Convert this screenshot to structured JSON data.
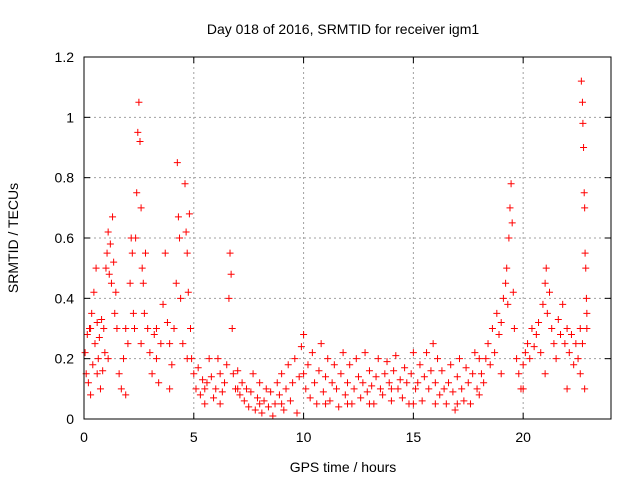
{
  "chart_data": {
    "type": "scatter",
    "title": "Day 018 of 2016, SRMTID for receiver igm1",
    "xlabel": "GPS time / hours",
    "ylabel": "SRMTID / TECUs",
    "xlim": [
      0,
      24
    ],
    "ylim": [
      0,
      1.2
    ],
    "xticks": [
      0,
      5,
      10,
      15,
      20
    ],
    "xtick_labels": [
      "0",
      "5",
      "10",
      "15",
      "20"
    ],
    "yticks": [
      0,
      0.2,
      0.4,
      0.6,
      0.8,
      1.0,
      1.2
    ],
    "ytick_labels": [
      "0",
      "0.2",
      "0.4",
      "0.6",
      "0.8",
      "1",
      "1.2"
    ],
    "grid": true,
    "marker": "plus",
    "color": "#ff0000",
    "series": [
      {
        "name": "SRMTID",
        "points": [
          [
            0.05,
            0.22
          ],
          [
            0.1,
            0.15
          ],
          [
            0.15,
            0.28
          ],
          [
            0.2,
            0.12
          ],
          [
            0.25,
            0.3
          ],
          [
            0.3,
            0.08
          ],
          [
            0.35,
            0.35
          ],
          [
            0.4,
            0.18
          ],
          [
            0.45,
            0.42
          ],
          [
            0.5,
            0.25
          ],
          [
            0.55,
            0.5
          ],
          [
            0.6,
            0.32
          ],
          [
            0.65,
            0.2
          ],
          [
            0.7,
            0.27
          ],
          [
            0.75,
            0.1
          ],
          [
            0.8,
            0.33
          ],
          [
            0.85,
            0.16
          ],
          [
            0.9,
            0.3
          ],
          [
            0.95,
            0.22
          ],
          [
            1.0,
            0.5
          ],
          [
            1.05,
            0.55
          ],
          [
            1.1,
            0.62
          ],
          [
            1.15,
            0.48
          ],
          [
            1.2,
            0.58
          ],
          [
            1.25,
            0.45
          ],
          [
            1.3,
            0.67
          ],
          [
            1.35,
            0.52
          ],
          [
            1.4,
            0.35
          ],
          [
            1.45,
            0.42
          ],
          [
            1.5,
            0.3
          ],
          [
            1.6,
            0.15
          ],
          [
            1.7,
            0.1
          ],
          [
            1.8,
            0.2
          ],
          [
            1.9,
            0.08
          ],
          [
            2.0,
            0.25
          ],
          [
            2.1,
            0.45
          ],
          [
            2.15,
            0.6
          ],
          [
            2.2,
            0.55
          ],
          [
            2.25,
            0.35
          ],
          [
            2.3,
            0.3
          ],
          [
            2.35,
            0.6
          ],
          [
            2.4,
            0.75
          ],
          [
            2.45,
            0.95
          ],
          [
            2.5,
            1.05
          ],
          [
            2.55,
            0.92
          ],
          [
            2.6,
            0.7
          ],
          [
            2.65,
            0.5
          ],
          [
            2.7,
            0.45
          ],
          [
            2.75,
            0.35
          ],
          [
            2.8,
            0.55
          ],
          [
            2.9,
            0.3
          ],
          [
            3.0,
            0.22
          ],
          [
            3.1,
            0.15
          ],
          [
            3.2,
            0.28
          ],
          [
            3.3,
            0.2
          ],
          [
            3.4,
            0.12
          ],
          [
            3.5,
            0.25
          ],
          [
            3.6,
            0.38
          ],
          [
            3.7,
            0.55
          ],
          [
            3.8,
            0.32
          ],
          [
            3.9,
            0.25
          ],
          [
            4.0,
            0.18
          ],
          [
            4.1,
            0.3
          ],
          [
            4.2,
            0.45
          ],
          [
            4.25,
            0.85
          ],
          [
            4.3,
            0.67
          ],
          [
            4.35,
            0.6
          ],
          [
            4.4,
            0.4
          ],
          [
            4.5,
            0.25
          ],
          [
            4.6,
            0.78
          ],
          [
            4.65,
            0.62
          ],
          [
            4.7,
            0.55
          ],
          [
            4.75,
            0.42
          ],
          [
            4.8,
            0.68
          ],
          [
            4.85,
            0.3
          ],
          [
            4.9,
            0.2
          ],
          [
            5.0,
            0.15
          ],
          [
            5.1,
            0.1
          ],
          [
            5.2,
            0.17
          ],
          [
            5.3,
            0.08
          ],
          [
            5.4,
            0.13
          ],
          [
            5.5,
            0.05
          ],
          [
            5.6,
            0.12
          ],
          [
            5.7,
            0.2
          ],
          [
            5.8,
            0.14
          ],
          [
            5.9,
            0.07
          ],
          [
            6.0,
            0.1
          ],
          [
            6.1,
            0.2
          ],
          [
            6.2,
            0.15
          ],
          [
            6.3,
            0.09
          ],
          [
            6.4,
            0.12
          ],
          [
            6.5,
            0.18
          ],
          [
            6.6,
            0.4
          ],
          [
            6.65,
            0.55
          ],
          [
            6.7,
            0.48
          ],
          [
            6.75,
            0.3
          ],
          [
            6.8,
            0.15
          ],
          [
            6.9,
            0.1
          ],
          [
            7.0,
            0.16
          ],
          [
            7.1,
            0.08
          ],
          [
            7.2,
            0.12
          ],
          [
            7.3,
            0.06
          ],
          [
            7.4,
            0.1
          ],
          [
            7.5,
            0.04
          ],
          [
            7.6,
            0.09
          ],
          [
            7.7,
            0.15
          ],
          [
            7.8,
            0.03
          ],
          [
            7.9,
            0.07
          ],
          [
            8.0,
            0.12
          ],
          [
            8.1,
            0.02
          ],
          [
            8.2,
            0.06
          ],
          [
            8.3,
            0.1
          ],
          [
            8.4,
            0.04
          ],
          [
            8.5,
            0.09
          ],
          [
            8.6,
            0.01
          ],
          [
            8.7,
            0.05
          ],
          [
            8.8,
            0.12
          ],
          [
            8.9,
            0.08
          ],
          [
            9.0,
            0.15
          ],
          [
            9.1,
            0.03
          ],
          [
            9.2,
            0.1
          ],
          [
            9.3,
            0.18
          ],
          [
            9.4,
            0.06
          ],
          [
            9.5,
            0.12
          ],
          [
            9.6,
            0.2
          ],
          [
            9.7,
            0.02
          ],
          [
            9.8,
            0.14
          ],
          [
            9.9,
            0.24
          ],
          [
            10.0,
            0.28
          ],
          [
            10.1,
            0.1
          ],
          [
            10.2,
            0.18
          ],
          [
            10.3,
            0.07
          ],
          [
            10.4,
            0.22
          ],
          [
            10.5,
            0.12
          ],
          [
            10.6,
            0.05
          ],
          [
            10.7,
            0.16
          ],
          [
            10.8,
            0.25
          ],
          [
            10.9,
            0.09
          ],
          [
            11.0,
            0.14
          ],
          [
            11.1,
            0.2
          ],
          [
            11.2,
            0.06
          ],
          [
            11.3,
            0.12
          ],
          [
            11.4,
            0.18
          ],
          [
            11.5,
            0.1
          ],
          [
            11.6,
            0.04
          ],
          [
            11.7,
            0.15
          ],
          [
            11.8,
            0.22
          ],
          [
            11.9,
            0.08
          ],
          [
            12.0,
            0.12
          ],
          [
            12.1,
            0.18
          ],
          [
            12.2,
            0.05
          ],
          [
            12.3,
            0.1
          ],
          [
            12.4,
            0.2
          ],
          [
            12.5,
            0.14
          ],
          [
            12.6,
            0.07
          ],
          [
            12.7,
            0.12
          ],
          [
            12.8,
            0.22
          ],
          [
            12.9,
            0.09
          ],
          [
            13.0,
            0.16
          ],
          [
            13.1,
            0.11
          ],
          [
            13.2,
            0.05
          ],
          [
            13.3,
            0.14
          ],
          [
            13.4,
            0.2
          ],
          [
            13.5,
            0.1
          ],
          [
            13.6,
            0.08
          ],
          [
            13.7,
            0.15
          ],
          [
            13.8,
            0.19
          ],
          [
            13.9,
            0.12
          ],
          [
            14.0,
            0.06
          ],
          [
            14.1,
            0.16
          ],
          [
            14.2,
            0.21
          ],
          [
            14.3,
            0.1
          ],
          [
            14.4,
            0.13
          ],
          [
            14.5,
            0.07
          ],
          [
            14.6,
            0.17
          ],
          [
            14.7,
            0.12
          ],
          [
            14.8,
            0.05
          ],
          [
            14.9,
            0.15
          ],
          [
            15.0,
            0.22
          ],
          [
            15.1,
            0.1
          ],
          [
            15.2,
            0.12
          ],
          [
            15.3,
            0.18
          ],
          [
            15.4,
            0.06
          ],
          [
            15.5,
            0.14
          ],
          [
            15.6,
            0.22
          ],
          [
            15.7,
            0.1
          ],
          [
            15.8,
            0.16
          ],
          [
            15.9,
            0.25
          ],
          [
            16.0,
            0.12
          ],
          [
            16.1,
            0.2
          ],
          [
            16.2,
            0.08
          ],
          [
            16.3,
            0.16
          ],
          [
            16.4,
            0.1
          ],
          [
            16.5,
            0.05
          ],
          [
            16.6,
            0.12
          ],
          [
            16.7,
            0.18
          ],
          [
            16.8,
            0.09
          ],
          [
            16.9,
            0.03
          ],
          [
            17.0,
            0.14
          ],
          [
            17.1,
            0.2
          ],
          [
            17.2,
            0.1
          ],
          [
            17.3,
            0.06
          ],
          [
            17.4,
            0.17
          ],
          [
            17.5,
            0.12
          ],
          [
            17.6,
            0.05
          ],
          [
            17.7,
            0.15
          ],
          [
            17.8,
            0.22
          ],
          [
            17.9,
            0.1
          ],
          [
            18.0,
            0.08
          ],
          [
            18.1,
            0.15
          ],
          [
            18.2,
            0.12
          ],
          [
            18.3,
            0.2
          ],
          [
            18.4,
            0.25
          ],
          [
            18.5,
            0.18
          ],
          [
            18.6,
            0.3
          ],
          [
            18.7,
            0.22
          ],
          [
            18.8,
            0.35
          ],
          [
            18.9,
            0.28
          ],
          [
            19.0,
            0.32
          ],
          [
            19.1,
            0.4
          ],
          [
            19.2,
            0.45
          ],
          [
            19.25,
            0.5
          ],
          [
            19.3,
            0.38
          ],
          [
            19.35,
            0.6
          ],
          [
            19.4,
            0.7
          ],
          [
            19.45,
            0.78
          ],
          [
            19.5,
            0.65
          ],
          [
            19.55,
            0.42
          ],
          [
            19.6,
            0.3
          ],
          [
            19.7,
            0.2
          ],
          [
            19.8,
            0.15
          ],
          [
            19.9,
            0.1
          ],
          [
            20.0,
            0.18
          ],
          [
            20.1,
            0.22
          ],
          [
            20.2,
            0.25
          ],
          [
            20.3,
            0.2
          ],
          [
            20.4,
            0.3
          ],
          [
            20.5,
            0.24
          ],
          [
            20.6,
            0.28
          ],
          [
            20.7,
            0.32
          ],
          [
            20.8,
            0.22
          ],
          [
            20.9,
            0.38
          ],
          [
            21.0,
            0.45
          ],
          [
            21.05,
            0.5
          ],
          [
            21.1,
            0.35
          ],
          [
            21.2,
            0.42
          ],
          [
            21.3,
            0.3
          ],
          [
            21.4,
            0.25
          ],
          [
            21.5,
            0.2
          ],
          [
            21.6,
            0.33
          ],
          [
            21.7,
            0.28
          ],
          [
            21.8,
            0.38
          ],
          [
            21.9,
            0.25
          ],
          [
            22.0,
            0.3
          ],
          [
            22.1,
            0.22
          ],
          [
            22.2,
            0.28
          ],
          [
            22.3,
            0.18
          ],
          [
            22.4,
            0.25
          ],
          [
            22.5,
            0.2
          ],
          [
            22.6,
            0.3
          ],
          [
            22.65,
            1.12
          ],
          [
            22.7,
            1.05
          ],
          [
            22.72,
            0.98
          ],
          [
            22.75,
            0.9
          ],
          [
            22.78,
            0.75
          ],
          [
            22.8,
            0.7
          ],
          [
            22.82,
            0.55
          ],
          [
            22.85,
            0.5
          ],
          [
            22.88,
            0.4
          ],
          [
            22.9,
            0.35
          ],
          [
            0.3,
            0.3
          ],
          [
            0.6,
            0.15
          ],
          [
            1.1,
            0.2
          ],
          [
            1.9,
            0.3
          ],
          [
            2.6,
            0.25
          ],
          [
            3.3,
            0.3
          ],
          [
            3.9,
            0.1
          ],
          [
            4.7,
            0.2
          ],
          [
            5.5,
            0.1
          ],
          [
            6.2,
            0.05
          ],
          [
            7.0,
            0.1
          ],
          [
            8.0,
            0.05
          ],
          [
            9.0,
            0.05
          ],
          [
            10.0,
            0.15
          ],
          [
            11.0,
            0.05
          ],
          [
            12.0,
            0.05
          ],
          [
            13.0,
            0.05
          ],
          [
            14.0,
            0.1
          ],
          [
            15.0,
            0.05
          ],
          [
            16.0,
            0.05
          ],
          [
            17.0,
            0.05
          ],
          [
            18.0,
            0.2
          ],
          [
            19.0,
            0.15
          ],
          [
            20.0,
            0.1
          ],
          [
            21.0,
            0.15
          ],
          [
            22.0,
            0.1
          ],
          [
            22.6,
            0.15
          ],
          [
            22.7,
            0.25
          ],
          [
            22.8,
            0.1
          ],
          [
            22.9,
            0.3
          ]
        ]
      }
    ]
  }
}
